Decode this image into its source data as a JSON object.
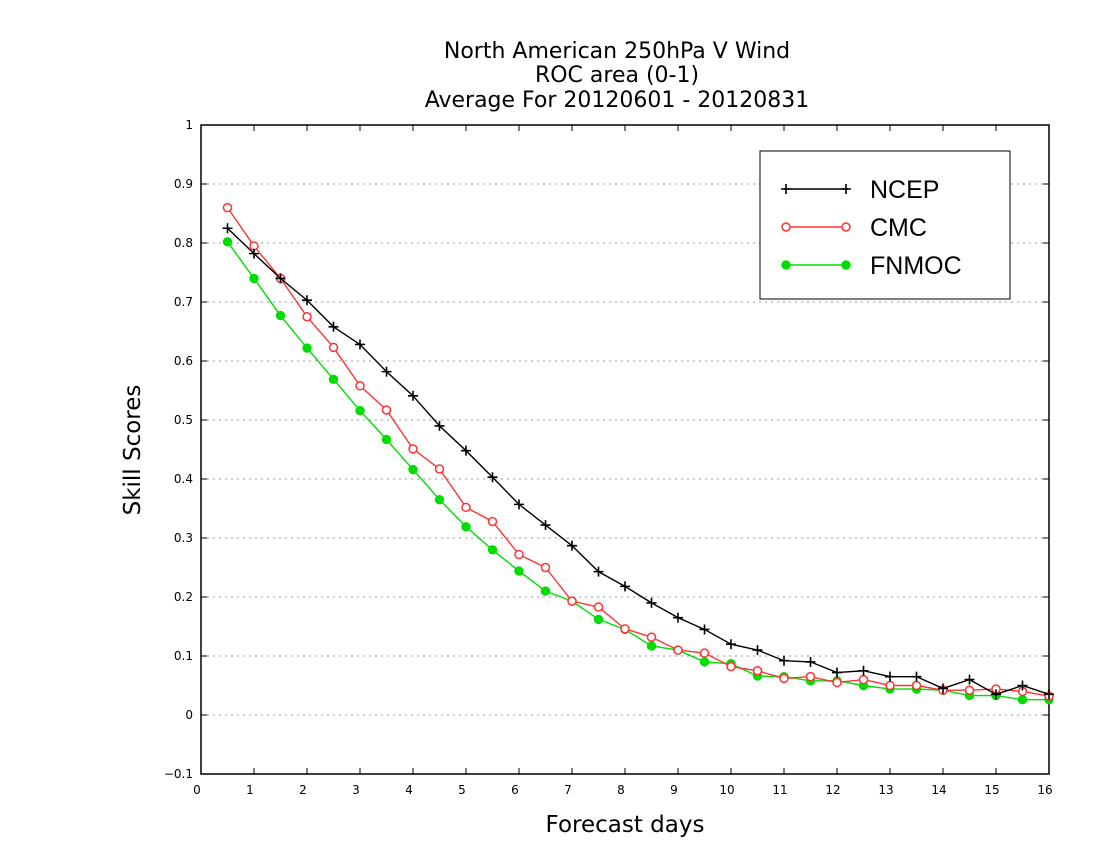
{
  "chart_data": {
    "type": "line",
    "title": [
      "North American 250hPa V Wind",
      "ROC area (0-1)",
      "Average For 20120601 - 20120831"
    ],
    "xlabel": "Forecast days",
    "ylabel": "Skill Scores",
    "xlim": [
      0,
      16
    ],
    "ylim": [
      -0.1,
      1
    ],
    "xticks": [
      "0",
      "1",
      "2",
      "3",
      "4",
      "5",
      "6",
      "7",
      "8",
      "9",
      "10",
      "11",
      "12",
      "13",
      "14",
      "15",
      "16"
    ],
    "yticks": [
      "−0.1",
      "0",
      "0.1",
      "0.2",
      "0.3",
      "0.4",
      "0.5",
      "0.6",
      "0.7",
      "0.8",
      "0.9",
      "1"
    ],
    "grid": "horizontal dotted",
    "legend_position": "top-right",
    "x": [
      0.5,
      1,
      1.5,
      2,
      2.5,
      3,
      3.5,
      4,
      4.5,
      5,
      5.5,
      6,
      6.5,
      7,
      7.5,
      8,
      8.5,
      9,
      9.5,
      10,
      10.5,
      11,
      11.5,
      12,
      12.5,
      13,
      13.5,
      14,
      14.5,
      15,
      15.5,
      16
    ],
    "series": [
      {
        "name": "NCEP",
        "color": "#000000",
        "marker": "plus",
        "values": [
          0.825,
          0.782,
          0.74,
          0.703,
          0.658,
          0.628,
          0.582,
          0.541,
          0.49,
          0.448,
          0.403,
          0.357,
          0.322,
          0.287,
          0.243,
          0.218,
          0.19,
          0.165,
          0.145,
          0.12,
          0.11,
          0.092,
          0.09,
          0.072,
          0.075,
          0.065,
          0.065,
          0.045,
          0.06,
          0.035,
          0.05,
          0.035
        ]
      },
      {
        "name": "CMC",
        "color": "#ff3333",
        "marker": "open-circle",
        "values": [
          0.86,
          0.795,
          0.74,
          0.675,
          0.623,
          0.558,
          0.517,
          0.451,
          0.417,
          0.352,
          0.328,
          0.272,
          0.25,
          0.193,
          0.183,
          0.146,
          0.132,
          0.11,
          0.105,
          0.082,
          0.075,
          0.062,
          0.065,
          0.055,
          0.06,
          0.05,
          0.05,
          0.042,
          0.042,
          0.044,
          0.04,
          0.032
        ]
      },
      {
        "name": "FNMOC",
        "color": "#00dd00",
        "marker": "filled-circle",
        "values": [
          0.802,
          0.74,
          0.677,
          0.622,
          0.569,
          0.516,
          0.467,
          0.416,
          0.365,
          0.319,
          0.28,
          0.244,
          0.21,
          0.193,
          0.162,
          0.145,
          0.117,
          0.11,
          0.09,
          0.087,
          0.066,
          0.065,
          0.058,
          0.058,
          0.05,
          0.044,
          0.044,
          0.042,
          0.033,
          0.033,
          0.026,
          0.026
        ]
      }
    ]
  }
}
